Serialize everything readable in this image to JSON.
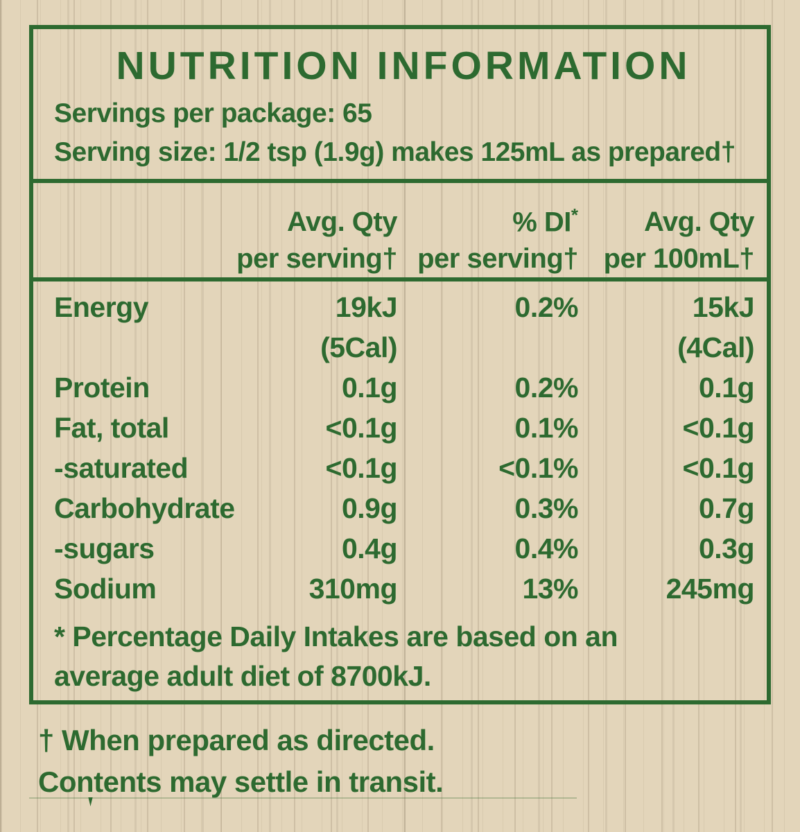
{
  "colors": {
    "background_beige": "#e3d5ba",
    "text_green": "#2d6a30",
    "border_green": "#2d6a30"
  },
  "panel": {
    "title": "NUTRITION INFORMATION",
    "servings_per_package": "Servings per package: 65",
    "serving_size": "Serving size: 1/2 tsp (1.9g) makes 125mL as prepared†",
    "columns": [
      {
        "line1": "Avg. Qty",
        "line2": "per serving†"
      },
      {
        "line1": "% DI",
        "sup": "*",
        "line2": "per serving†"
      },
      {
        "line1": "Avg. Qty",
        "line2": "per 100mL†"
      }
    ],
    "rows": [
      {
        "label": "Energy",
        "per_serving": "19kJ",
        "per_serving_line2": "(5Cal)",
        "pct_di": "0.2%",
        "per_100ml": "15kJ",
        "per_100ml_line2": "(4Cal)"
      },
      {
        "label": "Protein",
        "per_serving": "0.1g",
        "pct_di": "0.2%",
        "per_100ml": "0.1g"
      },
      {
        "label": "Fat, total",
        "per_serving": "<0.1g",
        "pct_di": "0.1%",
        "per_100ml": "<0.1g"
      },
      {
        "label": "-saturated",
        "per_serving": "<0.1g",
        "pct_di": "<0.1%",
        "per_100ml": "<0.1g"
      },
      {
        "label": "Carbohydrate",
        "per_serving": "0.9g",
        "pct_di": "0.3%",
        "per_100ml": "0.7g"
      },
      {
        "label": "-sugars",
        "per_serving": "0.4g",
        "pct_di": "0.4%",
        "per_100ml": "0.3g"
      },
      {
        "label": "Sodium",
        "per_serving": "310mg",
        "pct_di": "13%",
        "per_100ml": "245mg"
      }
    ],
    "footnote": "* Percentage Daily Intakes are based on an average adult diet of 8700kJ."
  },
  "below_panel": {
    "note_prepared": "† When prepared as directed.",
    "note_contents": "Contents may settle in transit."
  }
}
